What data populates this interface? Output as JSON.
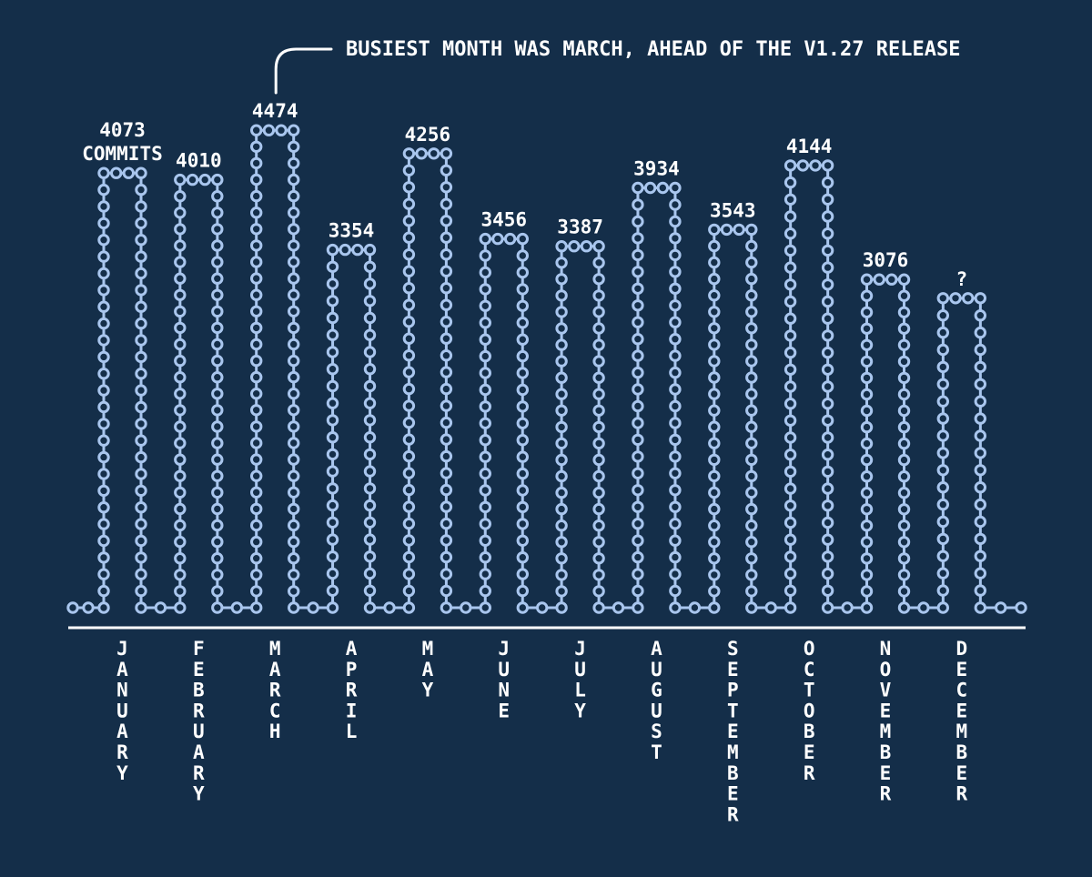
{
  "colors": {
    "background": "#142e49",
    "chain": "#a9c6ee",
    "text": "#ffffff",
    "axis": "#ffffff"
  },
  "annotation": {
    "text": "BUSIEST MONTH WAS MARCH, AHEAD OF THE V1.27 RELEASE",
    "target": "MARCH"
  },
  "chart_data": {
    "type": "bar",
    "categories": [
      "JANUARY",
      "FEBRUARY",
      "MARCH",
      "APRIL",
      "MAY",
      "JUNE",
      "JULY",
      "AUGUST",
      "SEPTEMBER",
      "OCTOBER",
      "NOVEMBER",
      "DECEMBER"
    ],
    "values": [
      4073,
      4010,
      4474,
      3354,
      4256,
      3456,
      3387,
      3934,
      3543,
      4144,
      3076,
      null
    ],
    "labels": [
      "4073",
      "4010",
      "4474",
      "3354",
      "4256",
      "3456",
      "3387",
      "3934",
      "3543",
      "4144",
      "3076",
      "?"
    ],
    "estimated_values": {
      "DECEMBER": 2900
    },
    "unit_label": "COMMITS",
    "unit_label_month": "JANUARY",
    "ylim": [
      0,
      4600
    ],
    "grid": false,
    "legend": "none"
  }
}
